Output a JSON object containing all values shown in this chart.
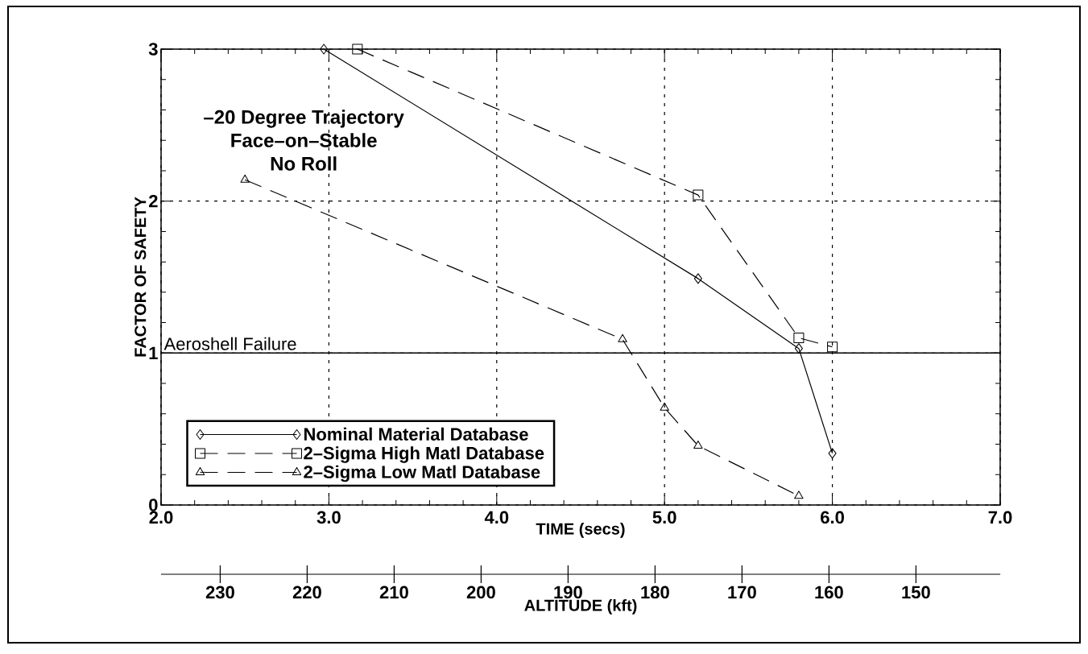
{
  "chart_data": {
    "type": "line",
    "xlabel": "TIME (secs)",
    "ylabel": "FACTOR OF SAFETY",
    "x2label": "ALTITUDE (kft)",
    "xlim": [
      2,
      7
    ],
    "xticks": [
      {
        "value": 2,
        "label": "2.0"
      },
      {
        "value": 3,
        "label": "3.0"
      },
      {
        "value": 4,
        "label": "4.0"
      },
      {
        "value": 5,
        "label": "5.0"
      },
      {
        "value": 6,
        "label": "6.0"
      },
      {
        "value": 7,
        "label": "7.0"
      }
    ],
    "ylim": [
      0,
      3
    ],
    "yticks": [
      0,
      1,
      2,
      3
    ],
    "x2lim": [
      236.8,
      140.3
    ],
    "x2ticks": [
      230,
      220,
      210,
      200,
      190,
      180,
      170,
      160,
      150
    ],
    "grid": true,
    "legend": "bottom left",
    "annotations": [
      "–20 Degree Trajectory",
      "Face–on–Stable",
      "No Roll"
    ],
    "ref_lines": [
      {
        "axis": "y",
        "value": 1,
        "label": "Aeroshell Failure",
        "color": "#000000",
        "line_style": "solid"
      }
    ],
    "series": [
      {
        "name": "Nominal Material Database",
        "color": "#000000",
        "marker": "diamond",
        "line_style": "solid",
        "x": [
          2.97,
          5.2,
          5.8,
          6.0
        ],
        "values": [
          3.0,
          1.49,
          1.03,
          0.34
        ]
      },
      {
        "name": "2–Sigma High Matl Database",
        "color": "#000000",
        "marker": "square",
        "line_style": "dashed",
        "x": [
          3.17,
          5.2,
          5.8,
          6.0
        ],
        "values": [
          3.0,
          2.04,
          1.1,
          1.04
        ]
      },
      {
        "name": "2–Sigma Low Matl Database",
        "color": "#000000",
        "marker": "triangle",
        "line_style": "dashed",
        "x": [
          2.5,
          4.75,
          5.0,
          5.2,
          5.8
        ],
        "values": [
          2.14,
          1.09,
          0.64,
          0.39,
          0.06
        ]
      }
    ]
  }
}
